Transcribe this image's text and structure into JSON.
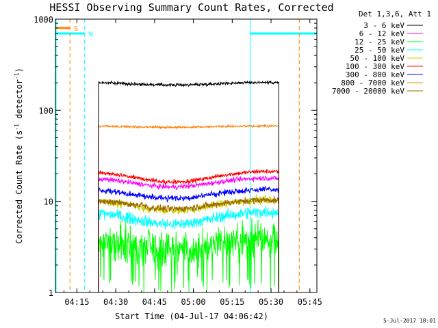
{
  "chart_data": {
    "type": "line",
    "title": "HESSI Observing Summary Count Rates, Corrected",
    "xlabel": "Start Time (04-Jul-17 04:06:42)",
    "ylabel_main": "Corrected Count Rate (s",
    "ylabel_sup1": "-1",
    "ylabel_mid": " detector",
    "ylabel_sup2": "-1",
    "ylabel_end": ")",
    "ylog": true,
    "ylim": [
      1,
      1000
    ],
    "xlim_minutes": [
      0,
      101
    ],
    "x_ticks": [
      {
        "label": "04:15",
        "minute": 8.3
      },
      {
        "label": "04:30",
        "minute": 23.3
      },
      {
        "label": "04:45",
        "minute": 38.3
      },
      {
        "label": "05:00",
        "minute": 53.3
      },
      {
        "label": "05:15",
        "minute": 68.3
      },
      {
        "label": "05:30",
        "minute": 83.3
      },
      {
        "label": "05:45",
        "minute": 98.3
      }
    ],
    "y_ticks": [
      {
        "label": "1",
        "value": 1
      },
      {
        "label": "10",
        "value": 10
      },
      {
        "label": "100",
        "value": 100
      },
      {
        "label": "1000",
        "value": 1000
      }
    ],
    "legend_title": "Det 1,3,6, Att 1",
    "legend_position": "right",
    "data_start_minute": 16.6,
    "data_end_minute": 86.3,
    "series": [
      {
        "name": "3 - 6 keV",
        "color": "#000000",
        "base": 195,
        "amp": 0.03,
        "noise": 0.035
      },
      {
        "name": "6 - 12 keV",
        "color": "#ff00ff",
        "base": 16,
        "amp": 0.1,
        "noise": 0.06
      },
      {
        "name": "12 - 25 keV",
        "color": "#00ff00",
        "base": 3.3,
        "amp": 0.12,
        "noise": 0.45
      },
      {
        "name": "25 - 50 keV",
        "color": "#00ffff",
        "base": 6.5,
        "amp": 0.14,
        "noise": 0.14
      },
      {
        "name": "50 - 100 keV",
        "color": "#cccc00",
        "base": 9,
        "amp": 0.12,
        "noise": 0.1
      },
      {
        "name": "100 - 300 keV",
        "color": "#ff0000",
        "base": 18.5,
        "amp": 0.12,
        "noise": 0.05
      },
      {
        "name": "300 - 800 keV",
        "color": "#0000ff",
        "base": 12,
        "amp": 0.1,
        "noise": 0.07
      },
      {
        "name": "800 - 7000 keV",
        "color": "#ff8000",
        "base": 66,
        "amp": 0.015,
        "noise": 0.025
      },
      {
        "name": "7000 - 20000 keV",
        "color": "#996600",
        "base": 9.2,
        "amp": 0.1,
        "noise": 0.08
      }
    ],
    "saa_label": "S",
    "night_label": "N",
    "saa_color": "#ff8000",
    "night_color": "#00ffff",
    "night_intervals_minutes": [
      [
        0,
        11.3
      ],
      [
        75.2,
        101
      ]
    ],
    "saa_intervals_minutes": [
      [
        0,
        5.6
      ],
      [
        94.2,
        101
      ]
    ]
  },
  "timestamp": "5-Jul-2017 18:01"
}
